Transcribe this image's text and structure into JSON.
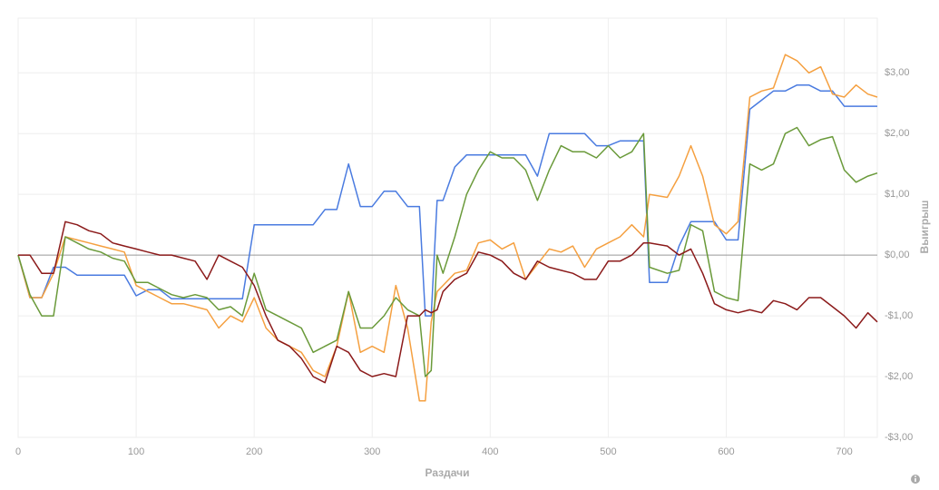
{
  "chart_data": {
    "type": "line",
    "x_label": "Раздачи",
    "y_label": "Выигрыш",
    "x": [
      0,
      10,
      20,
      30,
      40,
      50,
      60,
      70,
      80,
      90,
      100,
      110,
      120,
      130,
      140,
      150,
      160,
      170,
      180,
      190,
      200,
      210,
      220,
      230,
      240,
      250,
      260,
      270,
      280,
      290,
      300,
      310,
      320,
      330,
      340,
      345,
      350,
      355,
      360,
      370,
      380,
      390,
      400,
      410,
      420,
      430,
      440,
      450,
      460,
      470,
      480,
      490,
      500,
      510,
      520,
      530,
      535,
      550,
      560,
      570,
      580,
      590,
      600,
      610,
      620,
      630,
      640,
      650,
      660,
      670,
      680,
      690,
      700,
      710,
      720,
      728
    ],
    "series": [
      {
        "color": "#4a7be0",
        "values": [
          0,
          -0.7,
          -0.7,
          -0.2,
          -0.2,
          -0.33,
          -0.33,
          -0.33,
          -0.33,
          -0.33,
          -0.67,
          -0.57,
          -0.57,
          -0.72,
          -0.72,
          -0.72,
          -0.72,
          -0.72,
          -0.72,
          -0.72,
          0.5,
          0.5,
          0.5,
          0.5,
          0.5,
          0.5,
          0.75,
          0.75,
          1.5,
          0.8,
          0.8,
          1.05,
          1.05,
          0.8,
          0.8,
          -1.0,
          -1.0,
          0.9,
          0.9,
          1.45,
          1.65,
          1.65,
          1.65,
          1.65,
          1.65,
          1.65,
          1.3,
          2.0,
          2.0,
          2.0,
          2.0,
          1.8,
          1.8,
          1.88,
          1.88,
          1.88,
          -0.45,
          -0.45,
          0.15,
          0.55,
          0.55,
          0.55,
          0.25,
          0.25,
          2.4,
          2.55,
          2.7,
          2.7,
          2.8,
          2.8,
          2.7,
          2.7,
          2.45,
          2.45,
          2.45,
          2.45
        ]
      },
      {
        "color": "#f5a040",
        "values": [
          0,
          -0.7,
          -0.7,
          -0.3,
          0.3,
          0.25,
          0.2,
          0.15,
          0.1,
          0.05,
          -0.5,
          -0.6,
          -0.7,
          -0.8,
          -0.8,
          -0.85,
          -0.9,
          -1.2,
          -1.0,
          -1.1,
          -0.7,
          -1.2,
          -1.4,
          -1.5,
          -1.6,
          -1.9,
          -2.0,
          -1.5,
          -0.6,
          -1.6,
          -1.5,
          -1.6,
          -0.5,
          -1.2,
          -2.4,
          -2.4,
          -1.1,
          -0.6,
          -0.5,
          -0.3,
          -0.25,
          0.2,
          0.25,
          0.1,
          0.2,
          -0.4,
          -0.15,
          0.1,
          0.05,
          0.15,
          -0.2,
          0.1,
          0.2,
          0.3,
          0.5,
          0.3,
          1.0,
          0.95,
          1.3,
          1.8,
          1.3,
          0.5,
          0.35,
          0.55,
          2.6,
          2.7,
          2.75,
          3.3,
          3.2,
          3.0,
          3.1,
          2.65,
          2.6,
          2.8,
          2.65,
          2.6
        ]
      },
      {
        "color": "#6a9a3a",
        "values": [
          0,
          -0.65,
          -1.0,
          -1.0,
          0.3,
          0.2,
          0.1,
          0.05,
          -0.05,
          -0.1,
          -0.45,
          -0.45,
          -0.55,
          -0.65,
          -0.7,
          -0.65,
          -0.7,
          -0.9,
          -0.85,
          -1.0,
          -0.3,
          -0.9,
          -1.0,
          -1.1,
          -1.2,
          -1.6,
          -1.5,
          -1.4,
          -0.6,
          -1.2,
          -1.2,
          -1.0,
          -0.7,
          -0.9,
          -1.0,
          -2.0,
          -1.9,
          0.0,
          -0.3,
          0.3,
          1.0,
          1.4,
          1.7,
          1.6,
          1.6,
          1.4,
          0.9,
          1.4,
          1.8,
          1.7,
          1.7,
          1.6,
          1.8,
          1.6,
          1.7,
          2.0,
          -0.2,
          -0.3,
          -0.25,
          0.5,
          0.4,
          -0.6,
          -0.7,
          -0.75,
          1.5,
          1.4,
          1.5,
          2.0,
          2.1,
          1.8,
          1.9,
          1.95,
          1.4,
          1.2,
          1.3,
          1.35
        ]
      },
      {
        "color": "#8b1a1a",
        "values": [
          0,
          0,
          -0.3,
          -0.3,
          0.55,
          0.5,
          0.4,
          0.35,
          0.2,
          0.15,
          0.1,
          0.05,
          0.0,
          0.0,
          -0.05,
          -0.1,
          -0.4,
          0.0,
          -0.1,
          -0.2,
          -0.5,
          -1.0,
          -1.4,
          -1.5,
          -1.7,
          -2.0,
          -2.1,
          -1.5,
          -1.6,
          -1.9,
          -2.0,
          -1.95,
          -2.0,
          -1.0,
          -1.0,
          -0.9,
          -0.95,
          -0.9,
          -0.6,
          -0.4,
          -0.3,
          0.05,
          0.0,
          -0.1,
          -0.3,
          -0.4,
          -0.1,
          -0.2,
          -0.25,
          -0.3,
          -0.4,
          -0.4,
          -0.1,
          -0.1,
          0.0,
          0.2,
          0.2,
          0.15,
          0.0,
          0.1,
          -0.3,
          -0.8,
          -0.9,
          -0.95,
          -0.9,
          -0.95,
          -0.75,
          -0.8,
          -0.9,
          -0.7,
          -0.7,
          -0.85,
          -1.0,
          -1.2,
          -0.95,
          -1.1
        ]
      }
    ],
    "xlim": [
      0,
      728
    ],
    "xticks": [
      0,
      100,
      200,
      300,
      400,
      500,
      600,
      700
    ],
    "ylim": [
      -3,
      3.9
    ],
    "yticks": [
      {
        "value": -3,
        "label": "-$3,00"
      },
      {
        "value": -2,
        "label": "-$2,00"
      },
      {
        "value": -1,
        "label": "-$1,00"
      },
      {
        "value": 0,
        "label": "$0,00"
      },
      {
        "value": 1,
        "label": "$1,00"
      },
      {
        "value": 2,
        "label": "$2,00"
      },
      {
        "value": 3,
        "label": "$3,00"
      }
    ],
    "grid": true,
    "y_axis_side": "right"
  }
}
